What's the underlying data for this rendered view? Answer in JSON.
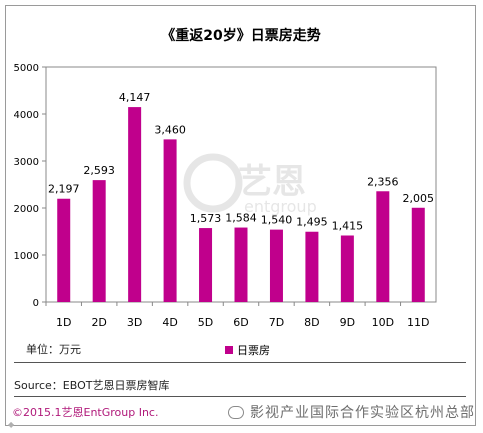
{
  "chart_data": {
    "type": "bar",
    "title": "《重返20岁》日票房走势",
    "categories": [
      "1D",
      "2D",
      "3D",
      "4D",
      "5D",
      "6D",
      "7D",
      "8D",
      "9D",
      "10D",
      "11D"
    ],
    "series": [
      {
        "name": "日票房",
        "values": [
          2197,
          2593,
          4147,
          3460,
          1573,
          1584,
          1540,
          1495,
          1415,
          2356,
          2005
        ]
      }
    ],
    "data_labels": [
      "2,197",
      "2,593",
      "4,147",
      "3,460",
      "1,573",
      "1,584",
      "1,540",
      "1,495",
      "1,415",
      "2,356",
      "2,005"
    ],
    "y_ticks": [
      "0",
      "1000",
      "2000",
      "3000",
      "4000",
      "5000"
    ],
    "ylim": [
      0,
      5000
    ],
    "grid": false,
    "legend_position": "bottom",
    "bar_color": "#c0008c"
  },
  "footer": {
    "unit": "单位：万元",
    "source": "Source：EBOT艺恩日票房智库",
    "copyright": "©2015.1艺恩EntGroup Inc."
  },
  "watermark": {
    "logo_text": "艺恩",
    "logo_sub": "entgroup",
    "overlay": "影视产业国际合作实验区杭州总部"
  }
}
